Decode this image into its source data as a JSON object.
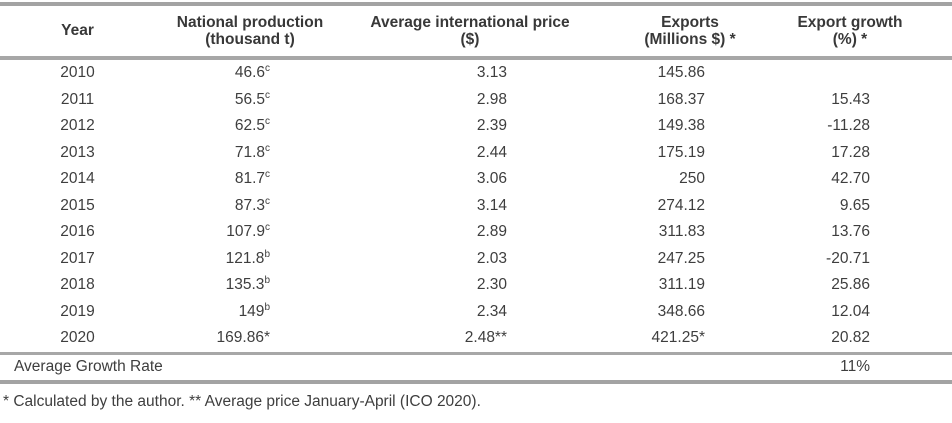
{
  "table": {
    "columns": [
      {
        "label": "Year",
        "sub": ""
      },
      {
        "label": "National production",
        "sub": "(thousand t)"
      },
      {
        "label": "Average international price",
        "sub": "($)"
      },
      {
        "label": "Exports",
        "sub": "(Millions $) *"
      },
      {
        "label": "Export growth",
        "sub": "(%) *"
      }
    ],
    "rows": [
      [
        "2010",
        {
          "t": "46.6",
          "s": "c"
        },
        "3.13",
        "145.86",
        ""
      ],
      [
        "2011",
        {
          "t": "56.5",
          "s": "c"
        },
        "2.98",
        "168.37",
        "15.43"
      ],
      [
        "2012",
        {
          "t": "62.5",
          "s": "c"
        },
        "2.39",
        "149.38",
        "-11.28"
      ],
      [
        "2013",
        {
          "t": "71.8",
          "s": "c"
        },
        "2.44",
        "175.19",
        "17.28"
      ],
      [
        "2014",
        {
          "t": "81.7",
          "s": "c"
        },
        "3.06",
        "250",
        "42.70"
      ],
      [
        "2015",
        {
          "t": "87.3",
          "s": "c"
        },
        "3.14",
        "274.12",
        "9.65"
      ],
      [
        "2016",
        {
          "t": "107.9",
          "s": "c"
        },
        "2.89",
        "311.83",
        "13.76"
      ],
      [
        "2017",
        {
          "t": "121.8",
          "s": "b"
        },
        "2.03",
        "247.25",
        "-20.71"
      ],
      [
        "2018",
        {
          "t": "135.3",
          "s": "b"
        },
        "2.30",
        "311.19",
        "25.86"
      ],
      [
        "2019",
        {
          "t": "149",
          "s": "b"
        },
        "2.34",
        "348.66",
        "12.04"
      ],
      [
        "2020",
        "169.86*",
        "2.48**",
        "421.25*",
        "20.82"
      ]
    ],
    "summary": {
      "label": "Average Growth Rate",
      "value": "11%"
    },
    "footnote": "* Calculated by the author. ** Average price January-April (ICO 2020).",
    "colors": {
      "rule_gray": "#a3a3a3",
      "text_gray": "#3e3e3e"
    }
  }
}
